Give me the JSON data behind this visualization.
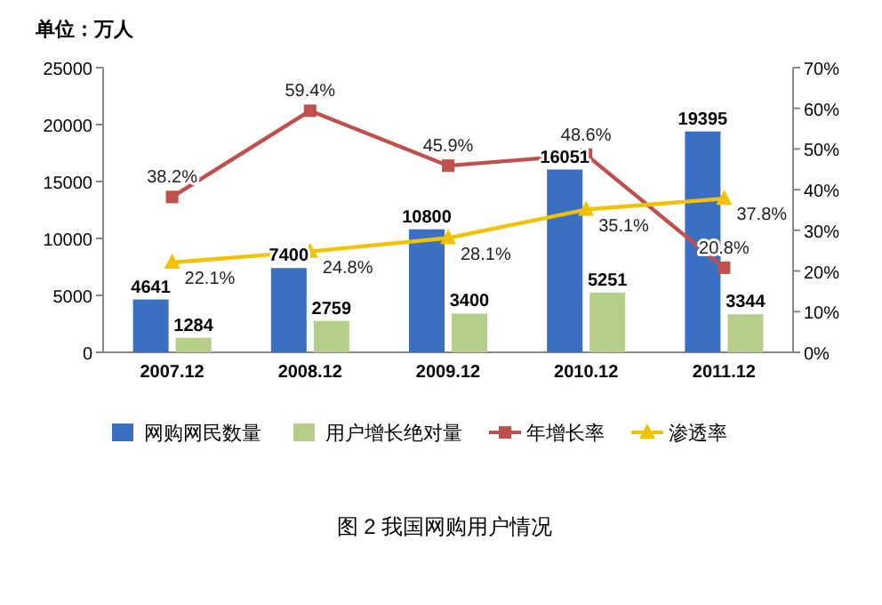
{
  "chart_data": {
    "type": "bar",
    "categories": [
      "2007.12",
      "2008.12",
      "2009.12",
      "2010.12",
      "2011.12"
    ],
    "series": [
      {
        "name": "网购网民数量",
        "color": "#3b6fc1",
        "values": [
          4641,
          7400,
          10800,
          16051,
          19395
        ],
        "value_labels": [
          "4641",
          "7400",
          "10800",
          "16051",
          "19395"
        ]
      },
      {
        "name": "用户增长绝对量",
        "color": "#b5cf8a",
        "values": [
          1284,
          2759,
          3400,
          5251,
          3344
        ],
        "value_labels": [
          "1284",
          "2759",
          "3400",
          "5251",
          "3344"
        ]
      },
      {
        "name": "年增长率",
        "type": "line",
        "axis": "y2",
        "marker": "square",
        "color": "#c0504d",
        "values": [
          38.2,
          59.4,
          45.9,
          48.6,
          20.8
        ],
        "value_labels": [
          "38.2%",
          "59.4%",
          "45.9%",
          "48.6%",
          "20.8%"
        ]
      },
      {
        "name": "渗透率",
        "type": "line",
        "axis": "y2",
        "marker": "triangle",
        "color": "#f2c200",
        "values": [
          22.1,
          24.8,
          28.1,
          35.1,
          37.8
        ],
        "value_labels": [
          "22.1%",
          "24.8%",
          "28.1%",
          "35.1%",
          "37.8%"
        ]
      }
    ],
    "ylim": [
      0,
      25000
    ],
    "yticks": [
      0,
      5000,
      10000,
      15000,
      20000,
      25000
    ],
    "y2lim": [
      0,
      70
    ],
    "y2ticks": [
      {
        "value": 0,
        "label": "0%"
      },
      {
        "value": 10,
        "label": "10%"
      },
      {
        "value": 20,
        "label": "20%"
      },
      {
        "value": 30,
        "label": "30%"
      },
      {
        "value": 40,
        "label": "40%"
      },
      {
        "value": 50,
        "label": "50%"
      },
      {
        "value": 60,
        "label": "60%"
      },
      {
        "value": 70,
        "label": "70%"
      }
    ],
    "legend": "bottom",
    "annotations": [
      "单位：万人",
      "图 2 我国网购用户情况"
    ]
  }
}
